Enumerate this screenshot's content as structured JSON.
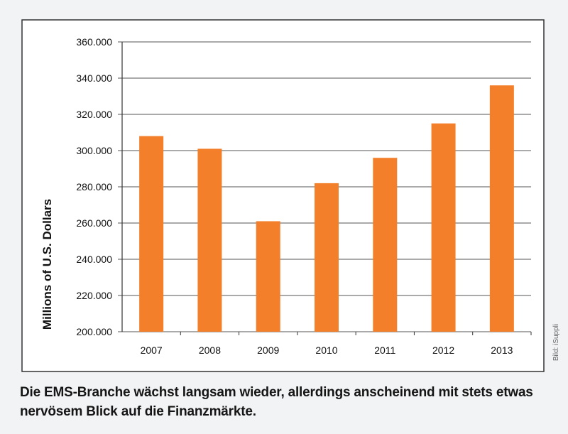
{
  "chart_data": {
    "type": "bar",
    "categories": [
      "2007",
      "2008",
      "2009",
      "2010",
      "2011",
      "2012",
      "2013"
    ],
    "values": [
      308000,
      301000,
      261000,
      282000,
      296000,
      315000,
      336000
    ],
    "ylabel": "Millions of U.S. Dollars",
    "xlabel": "",
    "ylim": [
      200000,
      360000
    ],
    "yticks": [
      200000,
      220000,
      240000,
      260000,
      280000,
      300000,
      320000,
      340000,
      360000
    ],
    "ytick_labels": [
      "200.000",
      "220.000",
      "240.000",
      "260.000",
      "280.000",
      "300.000",
      "320.000",
      "340.000",
      "360.000"
    ],
    "grid": true,
    "legend": "none",
    "colors": {
      "bar": "#f47f2a",
      "grid": "#555555",
      "frame": "#333333",
      "background": "#ffffff"
    }
  },
  "credit": "Bild: iSuppli",
  "caption": "Die EMS-Branche wächst langsam wieder, allerdings anscheinend mit stets etwas nervösem Blick auf die Finanzmärkte."
}
